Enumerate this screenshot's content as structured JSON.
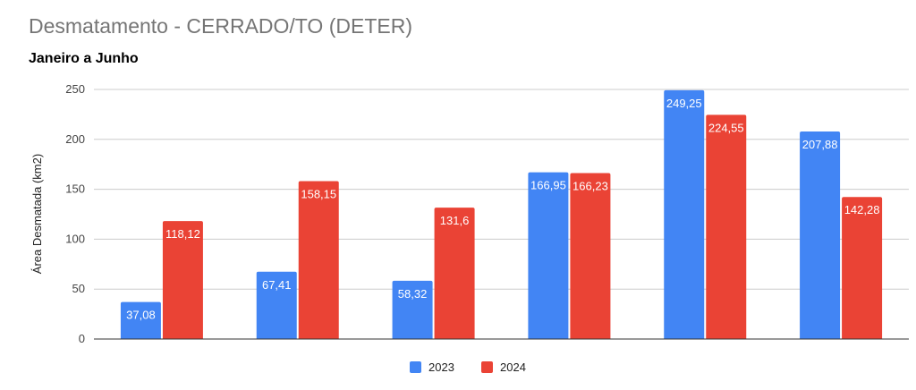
{
  "chart_data": {
    "type": "bar",
    "title": "Desmatamento - CERRADO/TO (DETER)",
    "subtitle": "Janeiro a Junho",
    "xlabel": "",
    "ylabel": "Área Desmatada (km2)",
    "ylim": [
      0,
      250
    ],
    "yticks": [
      0,
      50,
      100,
      150,
      200,
      250
    ],
    "grid": true,
    "legend": "bottom",
    "categories": [
      "",
      "",
      "",
      "",
      "",
      ""
    ],
    "series": [
      {
        "name": "2023",
        "color": "#4285F4",
        "values": [
          37.08,
          67.41,
          58.32,
          166.95,
          249.25,
          207.88
        ],
        "labels": [
          "37,08",
          "67,41",
          "58,32",
          "166,95",
          "249,25",
          "207,88"
        ]
      },
      {
        "name": "2024",
        "color": "#EA4335",
        "values": [
          118.12,
          158.15,
          131.6,
          166.23,
          224.55,
          142.28
        ],
        "labels": [
          "118,12",
          "158,15",
          "131,6",
          "166,23",
          "224,55",
          "142,28"
        ]
      }
    ]
  }
}
